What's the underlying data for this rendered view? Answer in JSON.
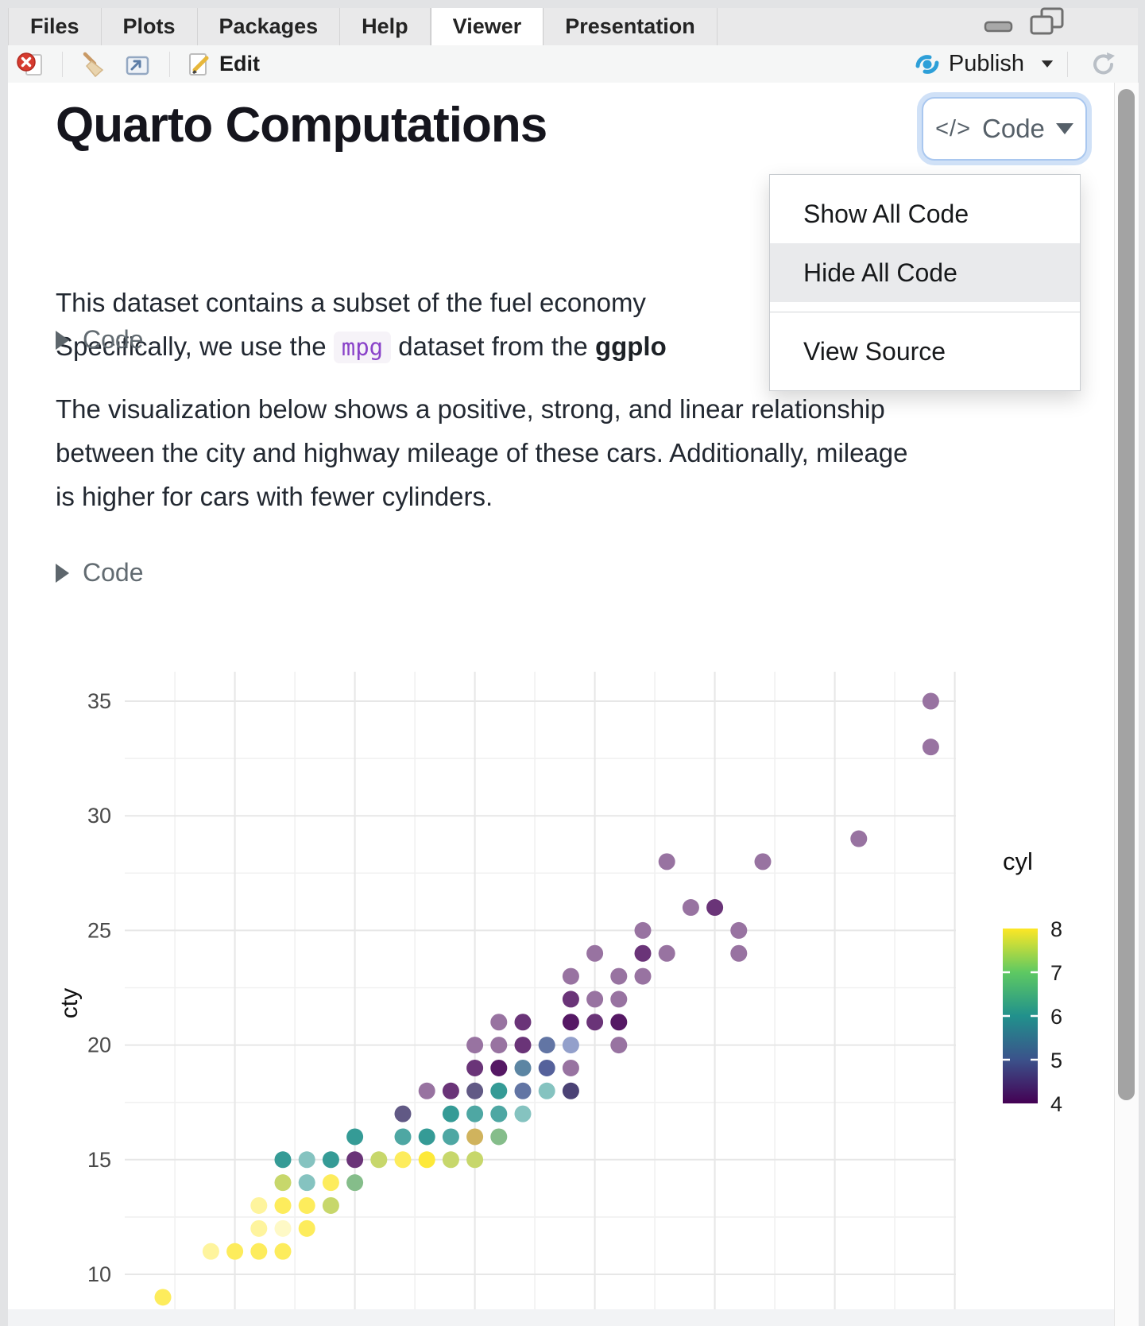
{
  "window": {
    "tabs": [
      {
        "label": "Files",
        "active": false
      },
      {
        "label": "Plots",
        "active": false
      },
      {
        "label": "Packages",
        "active": false
      },
      {
        "label": "Help",
        "active": false
      },
      {
        "label": "Viewer",
        "active": true
      },
      {
        "label": "Presentation",
        "active": false
      }
    ]
  },
  "toolbar": {
    "edit_label": "Edit",
    "publish_label": "Publish"
  },
  "doc": {
    "title": "Quarto Computations",
    "code_button": {
      "icon": "</>",
      "label": "Code"
    },
    "menu": {
      "items": [
        {
          "label": "Show All Code",
          "highlighted": false
        },
        {
          "label": "Hide All Code",
          "highlighted": true
        },
        {
          "label": "View Source",
          "highlighted": false
        }
      ],
      "divider_after_index": 1
    },
    "para1": {
      "line1": "This dataset contains a subset of the fuel economy",
      "line2_prefix": "Specifically, we use the ",
      "inline_code": "mpg",
      "line2_mid": " dataset from the ",
      "line2_bold": "ggplo"
    },
    "code_fold_label": "Code",
    "para2": {
      "lines": [
        "The visualization below shows a positive, strong, and linear relationship",
        "between the city and highway mileage of these cars. Additionally, mileage",
        "is higher for cars with fewer cylinders."
      ]
    }
  },
  "chart_data": {
    "type": "scatter",
    "ylabel": "cty",
    "y_ticks": [
      10,
      15,
      20,
      25,
      30,
      35
    ],
    "y_minor_ticks": [
      12.5,
      17.5,
      22.5,
      27.5,
      32.5
    ],
    "x_major_gridlines": [
      15,
      20,
      25,
      30,
      35,
      40,
      45
    ],
    "x_minor_gridlines": [
      12.5,
      17.5,
      22.5,
      27.5,
      32.5,
      37.5,
      42.5
    ],
    "x_range_estimated": [
      10.4,
      45
    ],
    "y_range_estimated": [
      8.4,
      36.3
    ],
    "grid": true,
    "legend": {
      "title": "cyl",
      "position": "right",
      "ticks": [
        8,
        7,
        6,
        5,
        4
      ],
      "gradient_top_to_bottom": [
        "#fde725",
        "#5ec962",
        "#21918c",
        "#3b528b",
        "#440154"
      ]
    },
    "point_format": [
      "x_estimated",
      "cty",
      "color",
      "cyl_estimate"
    ],
    "points": [
      [
        12,
        9,
        "#FDEC5C",
        "8"
      ],
      [
        14,
        11,
        "#FEF49D",
        "8"
      ],
      [
        15,
        11,
        "#FDEC5C",
        "8"
      ],
      [
        16,
        11,
        "#FDEC5C",
        "8"
      ],
      [
        17,
        11,
        "#FDEC5C",
        "8"
      ],
      [
        16,
        12,
        "#FEF49D",
        "8"
      ],
      [
        17,
        12,
        "#FEF9C6",
        "8"
      ],
      [
        18,
        12,
        "#FDEC5C",
        "8"
      ],
      [
        16,
        13,
        "#FEF49D",
        "8"
      ],
      [
        17,
        13,
        "#FDEC5C",
        "8"
      ],
      [
        18,
        13,
        "#FDEC5C",
        "8"
      ],
      [
        19,
        13,
        "#C7D76B",
        "6+8"
      ],
      [
        17,
        14,
        "#C7D76B",
        "6+8"
      ],
      [
        18,
        14,
        "#85C3C0",
        "6"
      ],
      [
        19,
        14,
        "#FDEC5C",
        "8"
      ],
      [
        20,
        14,
        "#85BD8A",
        "6+8"
      ],
      [
        17,
        15,
        "#359B96",
        "6"
      ],
      [
        18,
        15,
        "#85C3C0",
        "6"
      ],
      [
        19,
        15,
        "#359B96",
        "6"
      ],
      [
        20,
        15,
        "#6A3478",
        "4"
      ],
      [
        21,
        15,
        "#C7D76B",
        "6+8"
      ],
      [
        22,
        15,
        "#FDEC5C",
        "8"
      ],
      [
        23,
        15,
        "#FDE939",
        "8"
      ],
      [
        24,
        15,
        "#C7D76B",
        "6+8"
      ],
      [
        25,
        15,
        "#C7D76B",
        "6+8"
      ],
      [
        20,
        16,
        "#359B96",
        "6"
      ],
      [
        22,
        16,
        "#4EA7A3",
        "6"
      ],
      [
        23,
        16,
        "#359B96",
        "6"
      ],
      [
        24,
        16,
        "#4EA7A3",
        "6"
      ],
      [
        25,
        16,
        "#D0B35D",
        "4+8"
      ],
      [
        26,
        16,
        "#85BD8A",
        "6+8"
      ],
      [
        22,
        17,
        "#615985",
        "4+6"
      ],
      [
        24,
        17,
        "#359B96",
        "6"
      ],
      [
        25,
        17,
        "#4EA7A3",
        "6"
      ],
      [
        26,
        17,
        "#4EA7A3",
        "6"
      ],
      [
        27,
        17,
        "#85C3C0",
        "6"
      ],
      [
        23,
        18,
        "#9873A1",
        "4"
      ],
      [
        24,
        18,
        "#6A3478",
        "4"
      ],
      [
        25,
        18,
        "#615985",
        "4+6"
      ],
      [
        26,
        18,
        "#359B96",
        "6"
      ],
      [
        27,
        18,
        "#6275A4",
        "4+6"
      ],
      [
        28,
        18,
        "#85C3C0",
        "6"
      ],
      [
        29,
        18,
        "#4B4275",
        "4"
      ],
      [
        25,
        19,
        "#6A3478",
        "4"
      ],
      [
        26,
        19,
        "#551864",
        "4"
      ],
      [
        27,
        19,
        "#5C85A3",
        "5+6"
      ],
      [
        28,
        19,
        "#55619B",
        "5"
      ],
      [
        29,
        19,
        "#9873A1",
        "4"
      ],
      [
        25,
        20,
        "#9873A1",
        "4"
      ],
      [
        26,
        20,
        "#9873A1",
        "4"
      ],
      [
        27,
        20,
        "#6A3478",
        "4"
      ],
      [
        28,
        20,
        "#6275A4",
        "5"
      ],
      [
        29,
        20,
        "#93A0CB",
        "5"
      ],
      [
        31,
        20,
        "#9873A1",
        "4"
      ],
      [
        26,
        21,
        "#9873A1",
        "4"
      ],
      [
        27,
        21,
        "#6A3478",
        "4"
      ],
      [
        29,
        21,
        "#551864",
        "4"
      ],
      [
        30,
        21,
        "#6A3478",
        "4"
      ],
      [
        31,
        21,
        "#551864",
        "4"
      ],
      [
        29,
        22,
        "#6A3478",
        "4"
      ],
      [
        30,
        22,
        "#9873A1",
        "4"
      ],
      [
        31,
        22,
        "#9873A1",
        "4"
      ],
      [
        29,
        23,
        "#9873A1",
        "4"
      ],
      [
        31,
        23,
        "#9873A1",
        "4"
      ],
      [
        32,
        23,
        "#9873A1",
        "4"
      ],
      [
        30,
        24,
        "#9873A1",
        "4"
      ],
      [
        32,
        24,
        "#6A3478",
        "4"
      ],
      [
        33,
        24,
        "#9873A1",
        "4"
      ],
      [
        36,
        24,
        "#9873A1",
        "4"
      ],
      [
        32,
        25,
        "#9873A1",
        "4"
      ],
      [
        36,
        25,
        "#9873A1",
        "4"
      ],
      [
        34,
        26,
        "#9873A1",
        "4"
      ],
      [
        35,
        26,
        "#6A3478",
        "4"
      ],
      [
        33,
        28,
        "#9873A1",
        "4"
      ],
      [
        37,
        28,
        "#9873A1",
        "4"
      ],
      [
        41,
        29,
        "#9873A1",
        "4"
      ],
      [
        44,
        33,
        "#9873A1",
        "4"
      ],
      [
        44,
        35,
        "#9873A1",
        "4"
      ]
    ]
  },
  "colors": {
    "focus_ring": "#a9c7ef",
    "publish_blue": "#2d9fd8",
    "stop_red": "#d63b2f",
    "menu_highlight": "#e9eaec"
  }
}
